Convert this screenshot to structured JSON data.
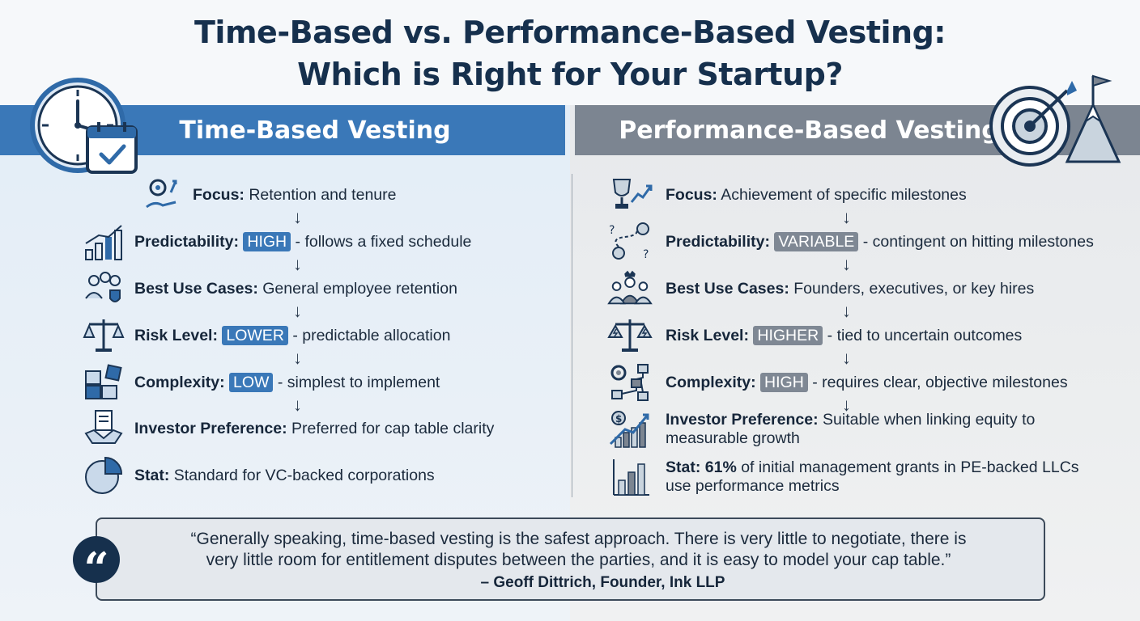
{
  "title": {
    "line1": "Time-Based vs. Performance-Based Vesting:",
    "line2": "Which is Right for Your Startup?"
  },
  "left": {
    "heading": "Time-Based Vesting",
    "big_icon": "clock-calendar-icon",
    "items": [
      {
        "icon": "gear-hand-icon",
        "label": "Focus:",
        "pill": "",
        "text": " Retention and tenure"
      },
      {
        "icon": "bar-chart-growth-icon",
        "label": "Predictability:",
        "pill": "HIGH",
        "text": " - follows a fixed schedule"
      },
      {
        "icon": "team-shield-icon",
        "label": "Best Use Cases:",
        "pill": "",
        "text": " General employee retention"
      },
      {
        "icon": "scales-icon",
        "label": "Risk Level:",
        "pill": "LOWER",
        "text": " - predictable allocation"
      },
      {
        "icon": "puzzle-icon",
        "label": "Complexity:",
        "pill": "LOW",
        "text": " - simplest to implement"
      },
      {
        "icon": "handshake-document-icon",
        "label": "Investor Preference:",
        "pill": "",
        "text": " Preferred for cap table clarity"
      },
      {
        "icon": "pie-chart-icon",
        "label": "Stat:",
        "pill": "",
        "text": " Standard for VC-backed corporations"
      }
    ]
  },
  "right": {
    "heading": "Performance-Based Vesting",
    "big_icon": "target-mountain-flag-icon",
    "items": [
      {
        "icon": "trophy-arrow-icon",
        "label": "Focus:",
        "pill": "",
        "text": " Achievement of specific milestones"
      },
      {
        "icon": "question-path-icon",
        "label": "Predictability:",
        "pill": "VARIABLE",
        "text": " - contingent on hitting milestones"
      },
      {
        "icon": "executives-icon",
        "label": "Best Use Cases:",
        "pill": "",
        "text": " Founders, executives, or key hires"
      },
      {
        "icon": "scales-lightning-icon",
        "label": "Risk Level:",
        "pill": "HIGHER",
        "text": " - tied to uncertain outcomes"
      },
      {
        "icon": "gear-flowchart-icon",
        "label": "Complexity:",
        "pill": "HIGH",
        "text": " - requires clear, objective milestones"
      },
      {
        "icon": "dollar-growth-chart-icon",
        "label": "Investor Preference:",
        "pill": "",
        "text": " Suitable when linking equity to",
        "text2": "measurable growth"
      },
      {
        "icon": "bar-chart-icon",
        "label": "Stat:",
        "pill": "",
        "strong": " 61%",
        "text": " of initial management grants in PE-backed LLCs",
        "text2": "use performance metrics"
      }
    ]
  },
  "quote": {
    "icon": "quote-icon",
    "line1": "“Generally speaking, time-based vesting is the safest approach. There is very little to negotiate, there is",
    "line2": "very little room for entitlement disputes between the parties, and it is easy to model your cap table.”",
    "attribution": "– Geoff Dittrich, Founder, Ink LLP"
  },
  "colors": {
    "left_accent": "#3a78b8",
    "right_accent": "#7c8591",
    "title": "#16304d"
  }
}
